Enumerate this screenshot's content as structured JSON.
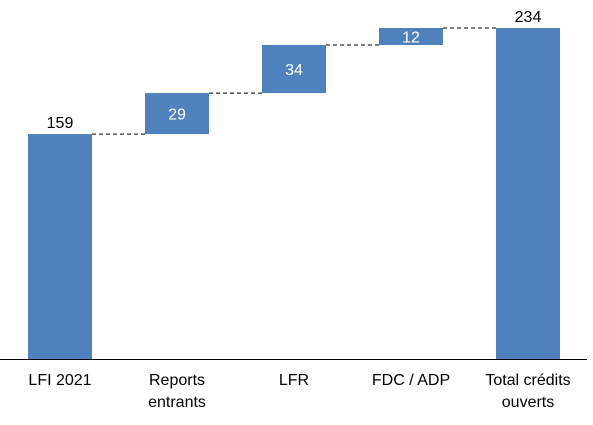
{
  "chart_data": {
    "type": "bar",
    "subtype": "waterfall",
    "title": "",
    "xlabel": "",
    "ylabel": "",
    "categories": [
      [
        "LFI 2021"
      ],
      [
        "Reports",
        "entrants"
      ],
      [
        "LFR"
      ],
      [
        "FDC / ADP"
      ],
      [
        "Total crédits",
        "ouverts"
      ]
    ],
    "values": [
      159,
      29,
      34,
      12,
      234
    ],
    "labels": [
      "159",
      "29",
      "34",
      "12",
      "234"
    ],
    "kinds": [
      "total",
      "increase",
      "increase",
      "increase",
      "total"
    ],
    "ylim": [
      0,
      234
    ],
    "grid": false,
    "legend": "none",
    "connectors": true,
    "colors": {
      "bar": "#4f81bd",
      "connector": "#000000",
      "axis": "#000000",
      "text_inside": "#ffffff",
      "text_outside": "#000000"
    }
  }
}
